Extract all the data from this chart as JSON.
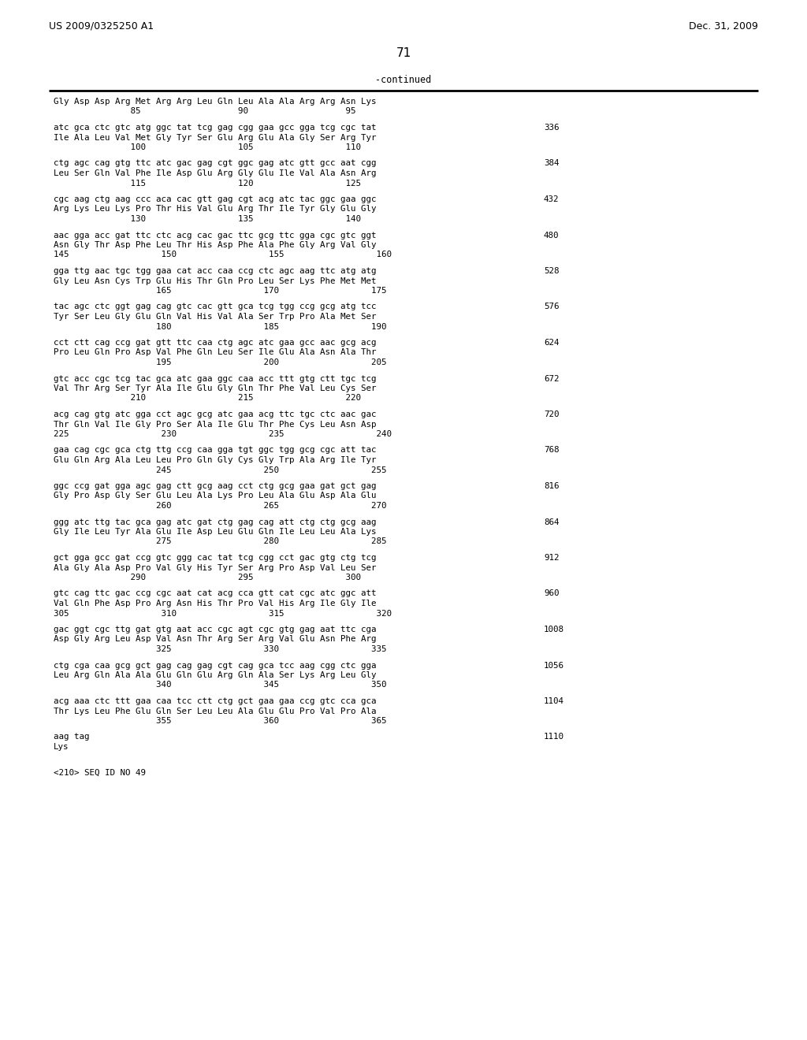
{
  "header_left": "US 2009/0325250 A1",
  "header_right": "Dec. 31, 2009",
  "page_number": "71",
  "continued_label": "-continued",
  "background_color": "#ffffff",
  "text_color": "#000000",
  "content": [
    {
      "type": "aa_header",
      "seq": "Gly Asp Asp Arg Met Arg Arg Leu Gln Leu Ala Ala Arg Arg Asn Lys"
    },
    {
      "type": "pos",
      "nums": "               85                   90                   95"
    },
    {
      "type": "blank"
    },
    {
      "type": "nt",
      "seq": "atc gca ctc gtc atg ggc tat tcg gag cgg gaa gcc gga tcg cgc tat",
      "num": "336"
    },
    {
      "type": "aa",
      "seq": "Ile Ala Leu Val Met Gly Tyr Ser Glu Arg Glu Ala Gly Ser Arg Tyr"
    },
    {
      "type": "pos",
      "nums": "               100                  105                  110"
    },
    {
      "type": "blank"
    },
    {
      "type": "nt",
      "seq": "ctg agc cag gtg ttc atc gac gag cgt ggc gag atc gtt gcc aat cgg",
      "num": "384"
    },
    {
      "type": "aa",
      "seq": "Leu Ser Gln Val Phe Ile Asp Glu Arg Gly Glu Ile Val Ala Asn Arg"
    },
    {
      "type": "pos",
      "nums": "               115                  120                  125"
    },
    {
      "type": "blank"
    },
    {
      "type": "nt",
      "seq": "cgc aag ctg aag ccc aca cac gtt gag cgt acg atc tac ggc gaa ggc",
      "num": "432"
    },
    {
      "type": "aa",
      "seq": "Arg Lys Leu Lys Pro Thr His Val Glu Arg Thr Ile Tyr Gly Glu Gly"
    },
    {
      "type": "pos",
      "nums": "               130                  135                  140"
    },
    {
      "type": "blank"
    },
    {
      "type": "nt",
      "seq": "aac gga acc gat ttc ctc acg cac gac ttc gcg ttc gga cgc gtc ggt",
      "num": "480"
    },
    {
      "type": "aa",
      "seq": "Asn Gly Thr Asp Phe Leu Thr His Asp Phe Ala Phe Gly Arg Val Gly"
    },
    {
      "type": "pos",
      "nums": "145                  150                  155                  160"
    },
    {
      "type": "blank"
    },
    {
      "type": "nt",
      "seq": "gga ttg aac tgc tgg gaa cat acc caa ccg ctc agc aag ttc atg atg",
      "num": "528"
    },
    {
      "type": "aa",
      "seq": "Gly Leu Asn Cys Trp Glu His Thr Gln Pro Leu Ser Lys Phe Met Met"
    },
    {
      "type": "pos",
      "nums": "                    165                  170                  175"
    },
    {
      "type": "blank"
    },
    {
      "type": "nt",
      "seq": "tac agc ctc ggt gag cag gtc cac gtt gca tcg tgg ccg gcg atg tcc",
      "num": "576"
    },
    {
      "type": "aa",
      "seq": "Tyr Ser Leu Gly Glu Gln Val His Val Ala Ser Trp Pro Ala Met Ser"
    },
    {
      "type": "pos",
      "nums": "                    180                  185                  190"
    },
    {
      "type": "blank"
    },
    {
      "type": "nt",
      "seq": "cct ctt cag ccg gat gtt ttc caa ctg agc atc gaa gcc aac gcg acg",
      "num": "624"
    },
    {
      "type": "aa",
      "seq": "Pro Leu Gln Pro Asp Val Phe Gln Leu Ser Ile Glu Ala Asn Ala Thr"
    },
    {
      "type": "pos",
      "nums": "                    195                  200                  205"
    },
    {
      "type": "blank"
    },
    {
      "type": "nt",
      "seq": "gtc acc cgc tcg tac gca atc gaa ggc caa acc ttt gtg ctt tgc tcg",
      "num": "672"
    },
    {
      "type": "aa",
      "seq": "Val Thr Arg Ser Tyr Ala Ile Glu Gly Gln Thr Phe Val Leu Cys Ser"
    },
    {
      "type": "pos",
      "nums": "               210                  215                  220"
    },
    {
      "type": "blank"
    },
    {
      "type": "nt",
      "seq": "acg cag gtg atc gga cct agc gcg atc gaa acg ttc tgc ctc aac gac",
      "num": "720"
    },
    {
      "type": "aa",
      "seq": "Thr Gln Val Ile Gly Pro Ser Ala Ile Glu Thr Phe Cys Leu Asn Asp"
    },
    {
      "type": "pos",
      "nums": "225                  230                  235                  240"
    },
    {
      "type": "blank"
    },
    {
      "type": "nt",
      "seq": "gaa cag cgc gca ctg ttg ccg caa gga tgt ggc tgg gcg cgc att tac",
      "num": "768"
    },
    {
      "type": "aa",
      "seq": "Glu Gln Arg Ala Leu Leu Pro Gln Gly Cys Gly Trp Ala Arg Ile Tyr"
    },
    {
      "type": "pos",
      "nums": "                    245                  250                  255"
    },
    {
      "type": "blank"
    },
    {
      "type": "nt",
      "seq": "ggc ccg gat gga agc gag ctt gcg aag cct ctg gcg gaa gat gct gag",
      "num": "816"
    },
    {
      "type": "aa",
      "seq": "Gly Pro Asp Gly Ser Glu Leu Ala Lys Pro Leu Ala Glu Asp Ala Glu"
    },
    {
      "type": "pos",
      "nums": "                    260                  265                  270"
    },
    {
      "type": "blank"
    },
    {
      "type": "nt",
      "seq": "ggg atc ttg tac gca gag atc gat ctg gag cag att ctg ctg gcg aag",
      "num": "864"
    },
    {
      "type": "aa",
      "seq": "Gly Ile Leu Tyr Ala Glu Ile Asp Leu Glu Gln Ile Leu Leu Ala Lys"
    },
    {
      "type": "pos",
      "nums": "                    275                  280                  285"
    },
    {
      "type": "blank"
    },
    {
      "type": "nt",
      "seq": "gct gga gcc gat ccg gtc ggg cac tat tcg cgg cct gac gtg ctg tcg",
      "num": "912"
    },
    {
      "type": "aa",
      "seq": "Ala Gly Ala Asp Pro Val Gly His Tyr Ser Arg Pro Asp Val Leu Ser"
    },
    {
      "type": "pos",
      "nums": "               290                  295                  300"
    },
    {
      "type": "blank"
    },
    {
      "type": "nt",
      "seq": "gtc cag ttc gac ccg cgc aat cat acg cca gtt cat cgc atc ggc att",
      "num": "960"
    },
    {
      "type": "aa",
      "seq": "Val Gln Phe Asp Pro Arg Asn His Thr Pro Val His Arg Ile Gly Ile"
    },
    {
      "type": "pos",
      "nums": "305                  310                  315                  320"
    },
    {
      "type": "blank"
    },
    {
      "type": "nt",
      "seq": "gac ggt cgc ttg gat gtg aat acc cgc agt cgc gtg gag aat ttc cga",
      "num": "1008"
    },
    {
      "type": "aa",
      "seq": "Asp Gly Arg Leu Asp Val Asn Thr Arg Ser Arg Val Glu Asn Phe Arg"
    },
    {
      "type": "pos",
      "nums": "                    325                  330                  335"
    },
    {
      "type": "blank"
    },
    {
      "type": "nt",
      "seq": "ctg cga caa gcg gct gag cag gag cgt cag gca tcc aag cgg ctc gga",
      "num": "1056"
    },
    {
      "type": "aa",
      "seq": "Leu Arg Gln Ala Ala Glu Gln Glu Arg Gln Ala Ser Lys Arg Leu Gly"
    },
    {
      "type": "pos",
      "nums": "                    340                  345                  350"
    },
    {
      "type": "blank"
    },
    {
      "type": "nt",
      "seq": "acg aaa ctc ttt gaa caa tcc ctt ctg gct gaa gaa ccg gtc cca gca",
      "num": "1104"
    },
    {
      "type": "aa",
      "seq": "Thr Lys Leu Phe Glu Gln Ser Leu Leu Ala Glu Glu Pro Val Pro Ala"
    },
    {
      "type": "pos",
      "nums": "                    355                  360                  365"
    },
    {
      "type": "blank"
    },
    {
      "type": "nt",
      "seq": "aag tag",
      "num": "1110"
    },
    {
      "type": "aa",
      "seq": "Lys"
    },
    {
      "type": "blank"
    },
    {
      "type": "blank"
    },
    {
      "type": "footer",
      "text": "<210> SEQ ID NO 49"
    }
  ]
}
